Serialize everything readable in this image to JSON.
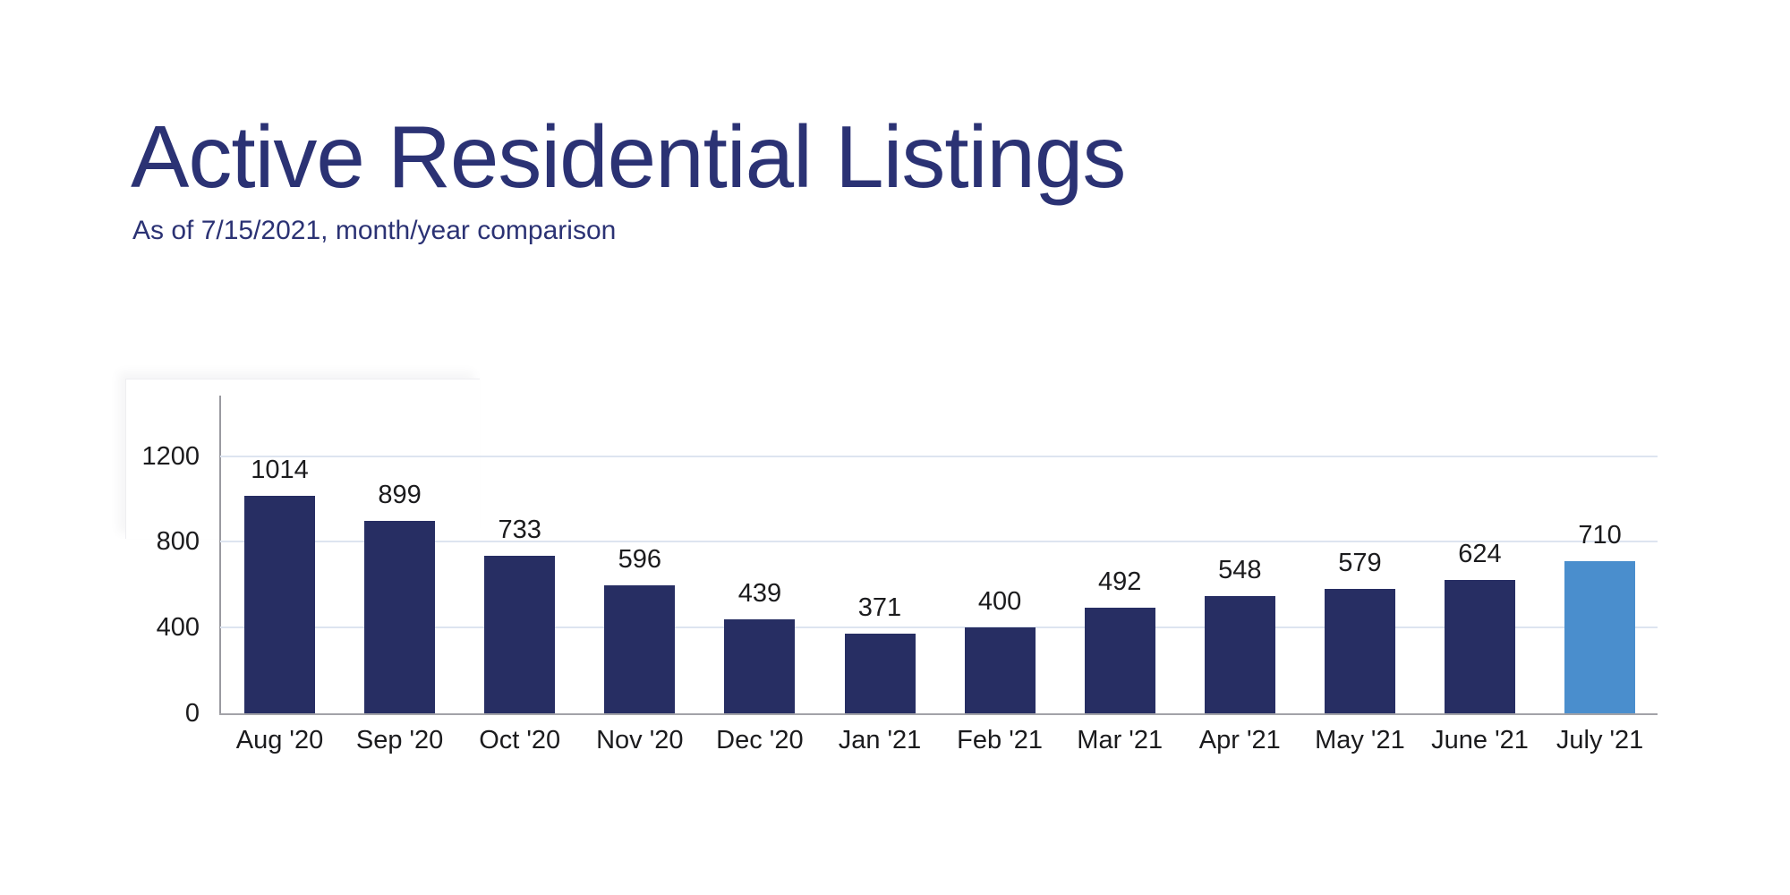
{
  "page": {
    "title": "Active Residential Listings",
    "subtitle": "As of 7/15/2021, month/year comparison",
    "background_color": "#ffffff",
    "heading_color": "#2b3274"
  },
  "chart_data": {
    "type": "bar",
    "title": "Active Residential Listings",
    "subtitle": "As of 7/15/2021, month/year comparison",
    "categories": [
      "Aug '20",
      "Sep '20",
      "Oct '20",
      "Nov '20",
      "Dec '20",
      "Jan '21",
      "Feb '21",
      "Mar '21",
      "Apr '21",
      "May '21",
      "June '21",
      "July '21"
    ],
    "values": [
      1014,
      899,
      733,
      596,
      439,
      371,
      400,
      492,
      548,
      579,
      624,
      710
    ],
    "value_labels_shown": true,
    "highlight_index": 11,
    "bar_color": "#272e63",
    "highlight_color": "#4a8ecd",
    "tick_label_color": "#1b1b1d",
    "gridline_color": "#dde4f0",
    "axis_line_color": "#9a9aa0",
    "yticks": [
      0,
      400,
      800,
      1200
    ],
    "ylim": [
      0,
      1480
    ],
    "grid": true,
    "legend": "none",
    "xlabel": "",
    "ylabel": ""
  }
}
